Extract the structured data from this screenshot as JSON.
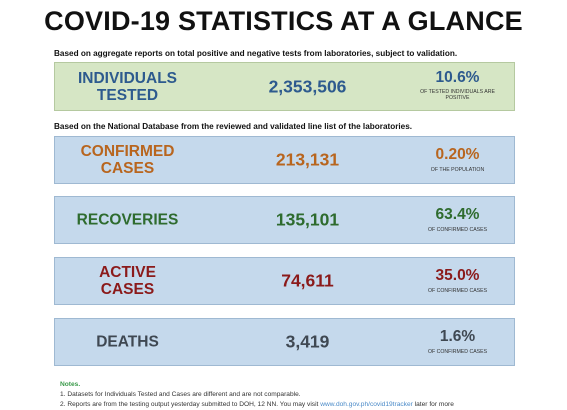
{
  "title": "COVID-19 STATISTICS AT A GLANCE",
  "note_tested": "Based on aggregate reports on total positive and negative tests from laboratories, subject to validation.",
  "note_database": "Based on the National Database from the reviewed and validated line list of the laboratories.",
  "cards": [
    {
      "label": "INDIVIDUALS\nTESTED",
      "value": "2,353,506",
      "pct": "10.6%",
      "sub": "OF TESTED INDIVIDUALS ARE\nPOSITIVE",
      "color": "#2d5a8e"
    },
    {
      "label": "CONFIRMED\nCASES",
      "value": "213,131",
      "pct": "0.20%",
      "sub": "OF THE POPULATION",
      "color": "#b8651e"
    },
    {
      "label": "RECOVERIES",
      "value": "135,101",
      "pct": "63.4%",
      "sub": "OF CONFIRMED CASES",
      "color": "#2e6b2e"
    },
    {
      "label": "ACTIVE\nCASES",
      "value": "74,611",
      "pct": "35.0%",
      "sub": "OF CONFIRMED CASES",
      "color": "#8b1a1a"
    },
    {
      "label": "DEATHS",
      "value": "3,419",
      "pct": "1.6%",
      "sub": "OF CONFIRMED CASES",
      "color": "#3f4852"
    }
  ],
  "notes": {
    "heading": "Notes.",
    "item1": "1. Datasets for Individuals Tested and Cases are different and are not comparable.",
    "item2_start": "2. Reports are from the testing output yesterday submitted to DOH, 12 NN. You may visit ",
    "item2_link": "www.doh.gov.ph/covid19tracker",
    "item2_end": " later for more"
  }
}
